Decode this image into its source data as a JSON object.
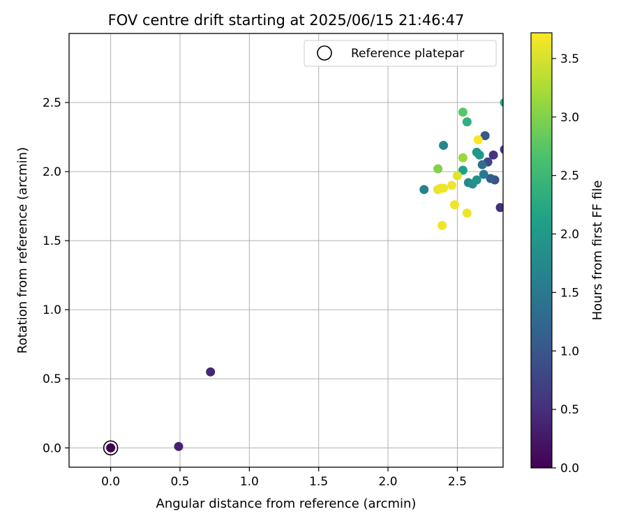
{
  "chart_data": {
    "type": "scatter",
    "title": "FOV centre drift starting at 2025/06/15 21:46:47",
    "xlabel": "Angular distance from reference (arcmin)",
    "ylabel": "Rotation from reference (arcmin)",
    "xlim": [
      -0.3,
      2.83
    ],
    "ylim": [
      -0.14,
      3.0
    ],
    "xticks": [
      "0.0",
      "0.5",
      "1.0",
      "1.5",
      "2.0",
      "2.5"
    ],
    "yticks": [
      "0.0",
      "0.5",
      "1.0",
      "1.5",
      "2.0",
      "2.5"
    ],
    "grid": true,
    "legend": {
      "position": "top-right",
      "entries": [
        "Reference platepar"
      ]
    },
    "reference_point": {
      "x": 0.0,
      "y": 0.0,
      "marker": "open-circle"
    },
    "colorbar": {
      "label": "Hours from first FF file",
      "colormap": "viridis",
      "range": [
        0.0,
        3.72
      ],
      "ticks": [
        "0.0",
        "0.5",
        "1.0",
        "1.5",
        "2.0",
        "2.5",
        "3.0",
        "3.5"
      ]
    },
    "points": [
      {
        "x": 0.0,
        "y": 0.0,
        "c": 0.0
      },
      {
        "x": 0.49,
        "y": 0.01,
        "c": 0.35
      },
      {
        "x": 0.72,
        "y": 0.55,
        "c": 0.4
      },
      {
        "x": 2.81,
        "y": 1.74,
        "c": 0.5
      },
      {
        "x": 2.76,
        "y": 2.12,
        "c": 0.55
      },
      {
        "x": 2.84,
        "y": 2.16,
        "c": 0.6
      },
      {
        "x": 2.72,
        "y": 2.07,
        "c": 0.8
      },
      {
        "x": 2.77,
        "y": 1.94,
        "c": 0.95
      },
      {
        "x": 2.7,
        "y": 2.26,
        "c": 1.0
      },
      {
        "x": 2.74,
        "y": 1.95,
        "c": 1.1
      },
      {
        "x": 2.68,
        "y": 2.05,
        "c": 1.3
      },
      {
        "x": 2.69,
        "y": 1.98,
        "c": 1.5
      },
      {
        "x": 2.26,
        "y": 1.87,
        "c": 1.65
      },
      {
        "x": 2.4,
        "y": 2.19,
        "c": 1.7
      },
      {
        "x": 2.58,
        "y": 1.92,
        "c": 1.75
      },
      {
        "x": 2.61,
        "y": 1.91,
        "c": 1.85
      },
      {
        "x": 2.64,
        "y": 1.94,
        "c": 1.9
      },
      {
        "x": 2.64,
        "y": 2.14,
        "c": 1.95
      },
      {
        "x": 2.66,
        "y": 2.12,
        "c": 2.0
      },
      {
        "x": 2.54,
        "y": 2.01,
        "c": 2.1
      },
      {
        "x": 2.57,
        "y": 2.36,
        "c": 2.35
      },
      {
        "x": 2.84,
        "y": 2.5,
        "c": 2.2
      },
      {
        "x": 2.54,
        "y": 2.43,
        "c": 2.75
      },
      {
        "x": 2.36,
        "y": 2.02,
        "c": 3.0
      },
      {
        "x": 2.54,
        "y": 2.1,
        "c": 3.15
      },
      {
        "x": 2.5,
        "y": 1.97,
        "c": 3.55
      },
      {
        "x": 2.46,
        "y": 1.9,
        "c": 3.65
      },
      {
        "x": 2.36,
        "y": 1.87,
        "c": 3.6
      },
      {
        "x": 2.38,
        "y": 1.88,
        "c": 3.65
      },
      {
        "x": 2.4,
        "y": 1.88,
        "c": 3.62
      },
      {
        "x": 2.48,
        "y": 1.76,
        "c": 3.65
      },
      {
        "x": 2.57,
        "y": 1.7,
        "c": 3.62
      },
      {
        "x": 2.39,
        "y": 1.61,
        "c": 3.65
      },
      {
        "x": 2.65,
        "y": 2.23,
        "c": 3.7
      }
    ]
  }
}
